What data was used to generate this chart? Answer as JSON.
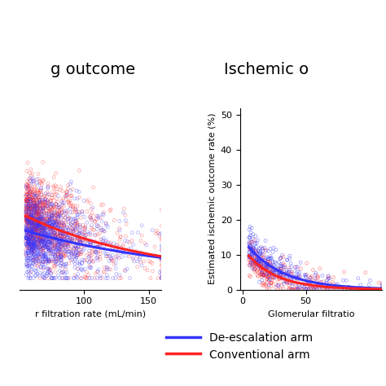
{
  "title_left": "g outcome",
  "title_right": "Ischemic o",
  "left_panel": {
    "xlabel": "r filtration rate (mL/min)",
    "ylabel": "",
    "xlim": [
      50,
      160
    ],
    "ylim": [
      -1,
      15
    ],
    "yticks": [],
    "xticks": [
      100,
      150
    ],
    "n_points": 1200,
    "curve_blue_a": 6.5,
    "curve_blue_b": -0.008,
    "curve_red_a": 9.5,
    "curve_red_b": -0.01,
    "y_noise_scale": 1.8,
    "x_start": 55,
    "x_scale": 22
  },
  "right_panel": {
    "xlabel": "Glomerular filtratio",
    "ylabel": "Estimated ischemic outcome rate (%)",
    "xlim": [
      -2,
      110
    ],
    "ylim": [
      0,
      52
    ],
    "yticks": [
      0,
      10,
      20,
      30,
      40,
      50
    ],
    "xticks": [
      0,
      50
    ],
    "n_points": 300,
    "curve_blue_a": 14.5,
    "curve_blue_b": -0.035,
    "curve_red_a": 12.0,
    "curve_red_b": -0.042,
    "y_noise_scale": 2.5,
    "x_start": 5,
    "x_scale": 28
  },
  "blue_color": "#3333FF",
  "red_color": "#FF2222",
  "scatter_blue_color": "#8888FF",
  "scatter_red_color": "#FF8888",
  "scatter_alpha": 0.5,
  "scatter_size": 8,
  "legend_labels": [
    "De-escalation arm",
    "Conventional arm"
  ],
  "bg_color": "#FFFFFF",
  "title_fontsize": 14,
  "label_fontsize": 8,
  "tick_fontsize": 8,
  "legend_fontsize": 10
}
